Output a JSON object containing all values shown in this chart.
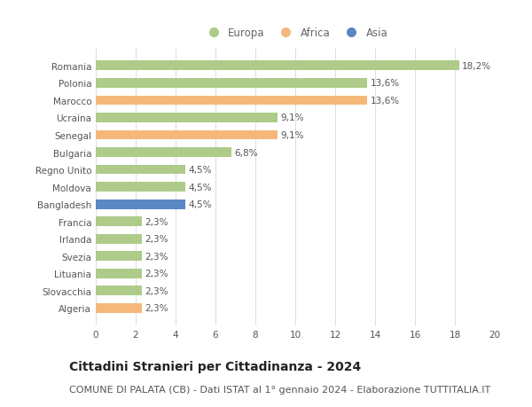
{
  "categories": [
    "Romania",
    "Polonia",
    "Marocco",
    "Ucraina",
    "Senegal",
    "Bulgaria",
    "Regno Unito",
    "Moldova",
    "Bangladesh",
    "Francia",
    "Irlanda",
    "Svezia",
    "Lituania",
    "Slovacchia",
    "Algeria"
  ],
  "values": [
    18.2,
    13.6,
    13.6,
    9.1,
    9.1,
    6.8,
    4.5,
    4.5,
    4.5,
    2.3,
    2.3,
    2.3,
    2.3,
    2.3,
    2.3
  ],
  "labels": [
    "18,2%",
    "13,6%",
    "13,6%",
    "9,1%",
    "9,1%",
    "6,8%",
    "4,5%",
    "4,5%",
    "4,5%",
    "2,3%",
    "2,3%",
    "2,3%",
    "2,3%",
    "2,3%",
    "2,3%"
  ],
  "continents": [
    "Europa",
    "Europa",
    "Africa",
    "Europa",
    "Africa",
    "Europa",
    "Europa",
    "Europa",
    "Asia",
    "Europa",
    "Europa",
    "Europa",
    "Europa",
    "Europa",
    "Africa"
  ],
  "colors": {
    "Europa": "#aecb8a",
    "Africa": "#f5b87a",
    "Asia": "#5b87c5"
  },
  "legend_items": [
    "Europa",
    "Africa",
    "Asia"
  ],
  "xlim": [
    0,
    20
  ],
  "xticks": [
    0,
    2,
    4,
    6,
    8,
    10,
    12,
    14,
    16,
    18,
    20
  ],
  "title": "Cittadini Stranieri per Cittadinanza - 2024",
  "subtitle": "COMUNE DI PALATA (CB) - Dati ISTAT al 1° gennaio 2024 - Elaborazione TUTTITALIA.IT",
  "title_fontsize": 10,
  "subtitle_fontsize": 8,
  "label_fontsize": 7.5,
  "tick_fontsize": 7.5,
  "legend_fontsize": 8.5,
  "bg_color": "#ffffff",
  "grid_color": "#dddddd"
}
